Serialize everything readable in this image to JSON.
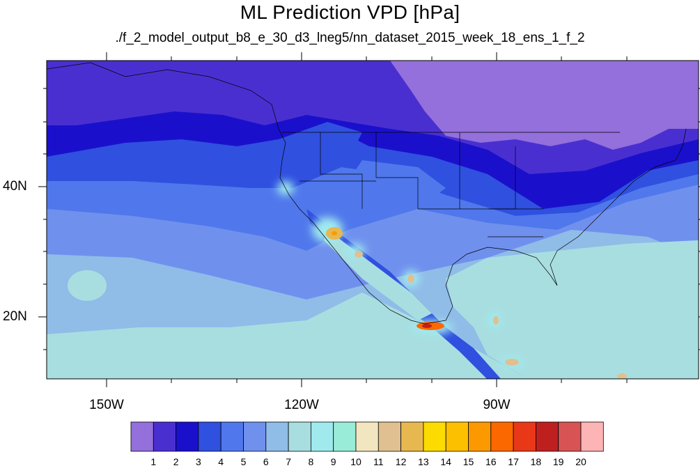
{
  "title": "ML Prediction VPD [hPa]",
  "subtitle": "./f_2_model_output_b8_e_30_d3_lneg5/nn_dataset_2015_week_18_ens_1_f_2",
  "map": {
    "lat_ticks": [
      "40N",
      "20N"
    ],
    "lon_ticks": [
      "150W",
      "120W",
      "90W"
    ]
  },
  "colorbar": {
    "labels": [
      "1",
      "2",
      "3",
      "4",
      "5",
      "6",
      "7",
      "8",
      "9",
      "10",
      "11",
      "12",
      "13",
      "14",
      "15",
      "16",
      "17",
      "18",
      "19",
      "20"
    ],
    "colors": [
      "#9370db",
      "#4a2fd0",
      "#1a10cc",
      "#3050e0",
      "#5078ec",
      "#7090ee",
      "#90bce8",
      "#a8dee0",
      "#a0eaee",
      "#98ecd8",
      "#f2e6c0",
      "#e0c090",
      "#e8b850",
      "#fcdc00",
      "#fcc000",
      "#fc9800",
      "#fc6800",
      "#e83818",
      "#be2020",
      "#d85454",
      "#fcb4b4"
    ]
  }
}
